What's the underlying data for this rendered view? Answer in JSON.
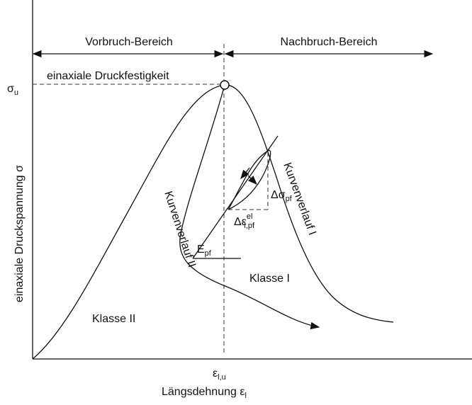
{
  "regions": {
    "left": "Vorbruch-Bereich",
    "right": "Nachbruch-Bereich"
  },
  "peak": {
    "symbol": "σ",
    "sub": "u",
    "label": "einaxiale Druckfestigkeit"
  },
  "y_axis_label": "einaxiale Druckspannung σ",
  "curves": {
    "class2": "Kurvenverlauf II",
    "class1": "Kurvenverlauf I"
  },
  "delta_sigma": {
    "main": "Δσ",
    "sub": "pf"
  },
  "delta_eps": {
    "main": "Δε",
    "sup": "el",
    "sub": "l,pf"
  },
  "modulus": {
    "main": "E",
    "sub": "pf"
  },
  "classes": {
    "one": "Klasse I",
    "two": "Klasse II"
  },
  "eps_lu": {
    "main": "ε",
    "sub": "l,u"
  },
  "x_axis_label": {
    "main": "Längsdehnung ε",
    "sub": "l"
  }
}
